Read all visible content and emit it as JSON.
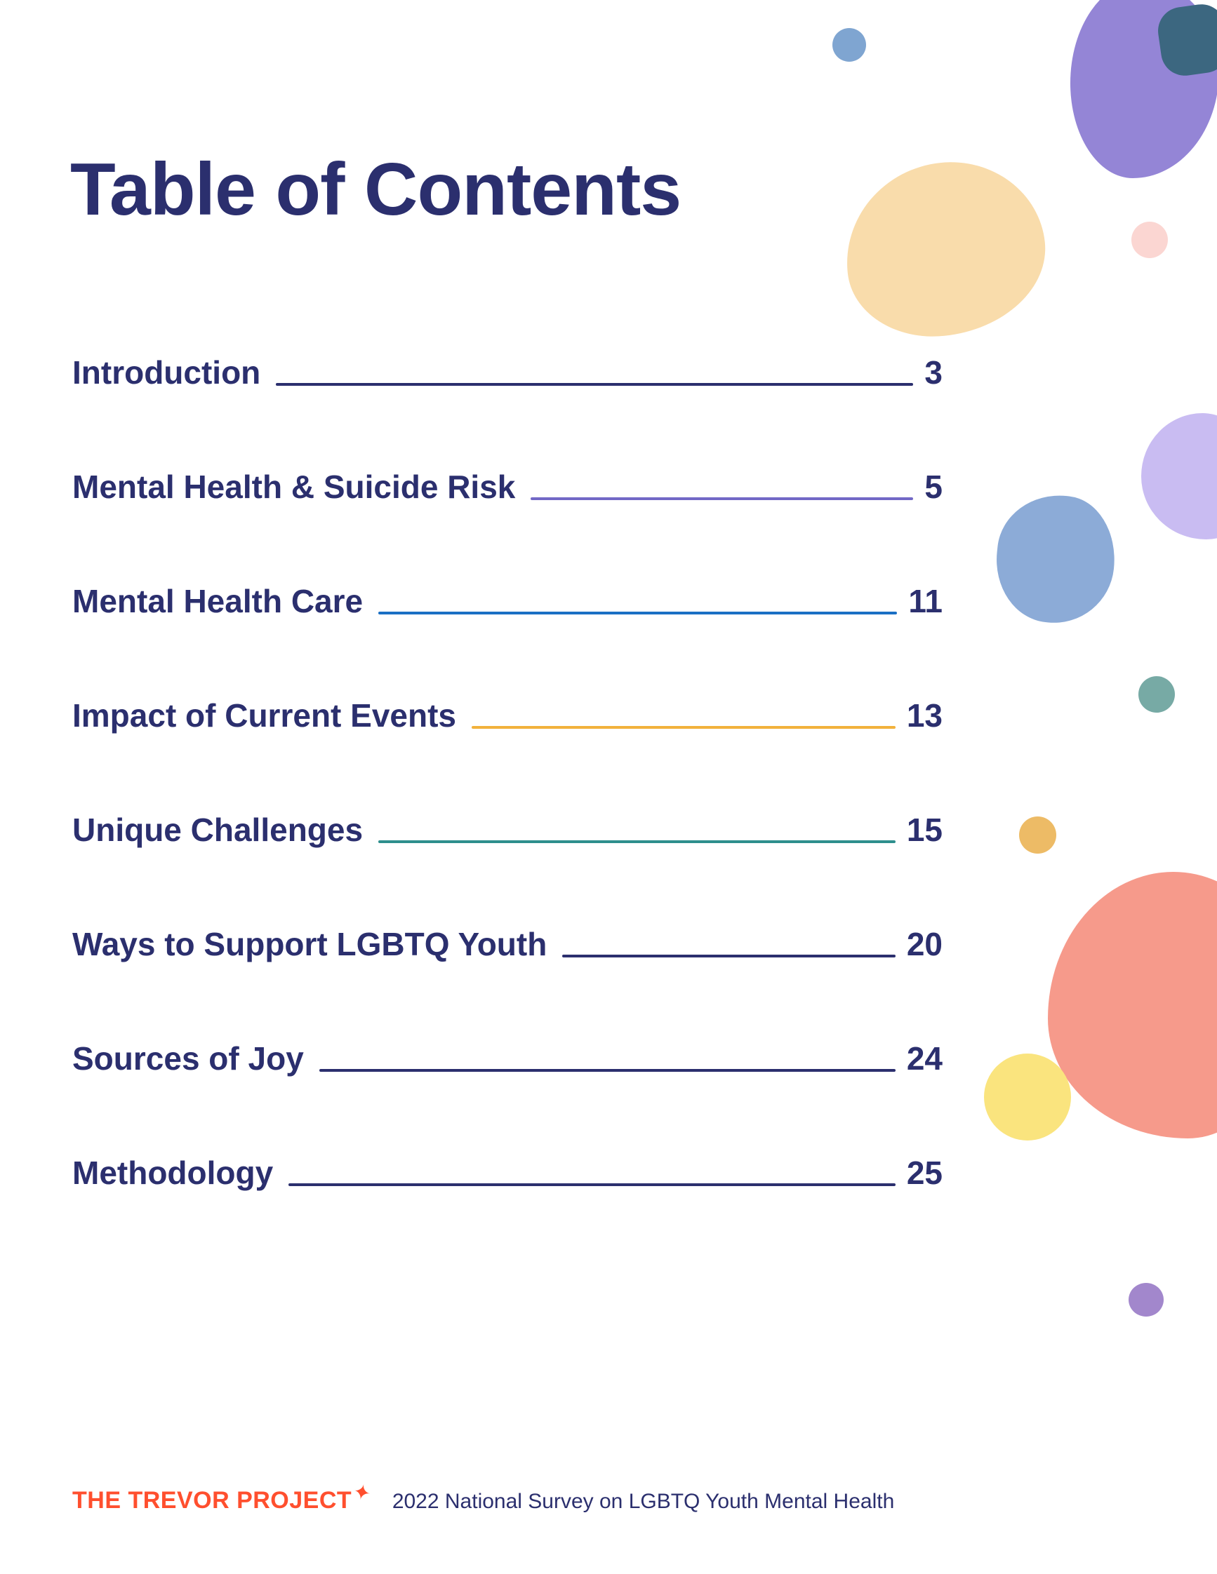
{
  "page_title": "Table of Contents",
  "toc_entries": [
    {
      "label": "Introduction",
      "page": "3",
      "line_color": "#2b2f6e"
    },
    {
      "label": "Mental Health & Suicide Risk",
      "page": "5",
      "line_color": "#7268c6"
    },
    {
      "label": "Mental Health Care",
      "page": "11",
      "line_color": "#1a6fc4"
    },
    {
      "label": "Impact of Current Events",
      "page": "13",
      "line_color": "#f2b23c"
    },
    {
      "label": "Unique Challenges",
      "page": "15",
      "line_color": "#2e8f8d"
    },
    {
      "label": "Ways to Support LGBTQ Youth",
      "page": "20",
      "line_color": "#2b2f6e"
    },
    {
      "label": "Sources of Joy",
      "page": "24",
      "line_color": "#2b2f6e"
    },
    {
      "label": "Methodology",
      "page": "25",
      "line_color": "#2b2f6e"
    }
  ],
  "footer": {
    "logo_text": "THE TREVOR PROJECT",
    "sparkle_icon": "✦",
    "caption": "2022 National Survey on LGBTQ Youth Mental Health"
  },
  "colors": {
    "text_navy": "#2b2f6e",
    "logo_orange": "#ff4f2e"
  },
  "decor": {
    "dot_blue_top": "#7fa5d1",
    "blob_purple_top": "#9485d6",
    "square_slate_top": "#3c6780",
    "blob_peach": "#f9dcab",
    "dot_pink": "#fbd6d2",
    "blob_lavender": "#c9bcf2",
    "blob_steelblue": "#8cabd7",
    "dot_teal": "#77aaa5",
    "dot_amber": "#edbb66",
    "blob_salmon": "#f69a8b",
    "dot_yellow": "#fae47e",
    "dot_purple_bottom": "#a287cc"
  }
}
